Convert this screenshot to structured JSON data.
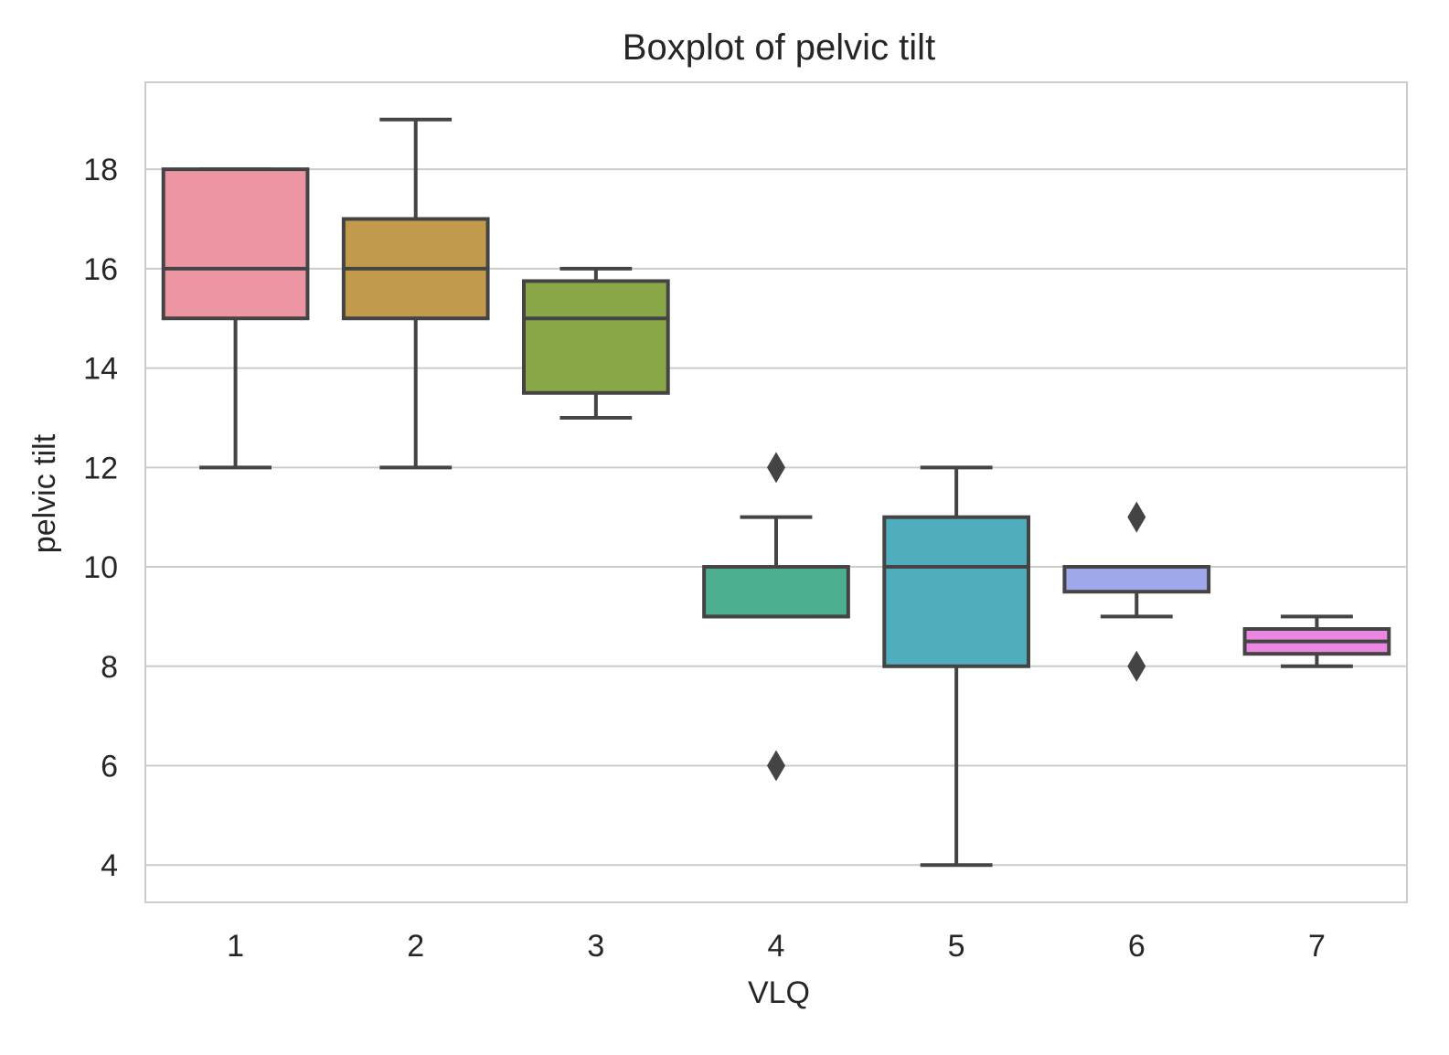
{
  "chart_data": {
    "type": "box",
    "title": "Boxplot of pelvic tilt",
    "xlabel": "VLQ",
    "ylabel": "pelvic tilt",
    "categories": [
      "1",
      "2",
      "3",
      "4",
      "5",
      "6",
      "7"
    ],
    "ylim": [
      3.25,
      19.75
    ],
    "yticks": [
      4,
      6,
      8,
      10,
      12,
      14,
      16,
      18
    ],
    "grid": true,
    "boxes": [
      {
        "category": "1",
        "whisker_low": 12,
        "q1": 15,
        "median": 16,
        "q3": 18,
        "whisker_high": 18,
        "outliers": [],
        "color": "#ec95a3"
      },
      {
        "category": "2",
        "whisker_low": 12,
        "q1": 15,
        "median": 16,
        "q3": 17,
        "whisker_high": 19,
        "outliers": [],
        "color": "#c29a4b"
      },
      {
        "category": "3",
        "whisker_low": 13,
        "q1": 13.5,
        "median": 15,
        "q3": 15.75,
        "whisker_high": 16,
        "outliers": [],
        "color": "#8aa748"
      },
      {
        "category": "4",
        "whisker_low": 9,
        "q1": 9,
        "median": 9,
        "q3": 10,
        "whisker_high": 11,
        "outliers": [
          12,
          6
        ],
        "color": "#4caf8f"
      },
      {
        "category": "5",
        "whisker_low": 4,
        "q1": 8,
        "median": 10,
        "q3": 11,
        "whisker_high": 12,
        "outliers": [],
        "color": "#4fadbd"
      },
      {
        "category": "6",
        "whisker_low": 9,
        "q1": 9.5,
        "median": 10,
        "q3": 10,
        "whisker_high": 10,
        "outliers": [
          11,
          8
        ],
        "color": "#9ea8ea"
      },
      {
        "category": "7",
        "whisker_low": 8,
        "q1": 8.25,
        "median": 8.5,
        "q3": 8.75,
        "whisker_high": 9,
        "outliers": [],
        "color": "#ea87e1"
      }
    ],
    "colors": {
      "line": "#444444",
      "grid": "#cccccc",
      "frame": "#cccccc",
      "text": "#262626"
    }
  }
}
